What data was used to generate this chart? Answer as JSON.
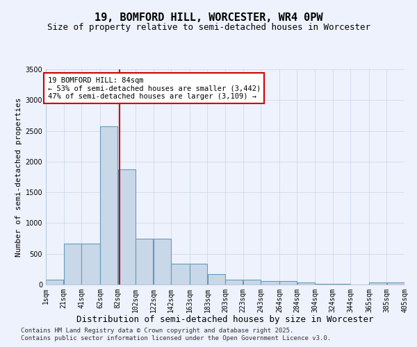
{
  "title": "19, BOMFORD HILL, WORCESTER, WR4 0PW",
  "subtitle": "Size of property relative to semi-detached houses in Worcester",
  "xlabel": "Distribution of semi-detached houses by size in Worcester",
  "ylabel": "Number of semi-detached properties",
  "footnote1": "Contains HM Land Registry data © Crown copyright and database right 2025.",
  "footnote2": "Contains public sector information licensed under the Open Government Licence v3.0.",
  "annotation_title": "19 BOMFORD HILL: 84sqm",
  "annotation_line1": "← 53% of semi-detached houses are smaller (3,442)",
  "annotation_line2": "47% of semi-detached houses are larger (3,109) →",
  "property_size": 84,
  "bar_left_edges": [
    1,
    21,
    41,
    62,
    82,
    102,
    122,
    142,
    163,
    183,
    203,
    223,
    243,
    264,
    284,
    304,
    324,
    344,
    365,
    385
  ],
  "bar_widths": [
    20,
    20,
    21,
    20,
    20,
    20,
    20,
    21,
    20,
    20,
    20,
    20,
    21,
    20,
    20,
    20,
    20,
    21,
    20,
    20
  ],
  "bar_heights": [
    75,
    670,
    670,
    2570,
    1870,
    750,
    750,
    340,
    340,
    170,
    80,
    80,
    55,
    55,
    30,
    10,
    10,
    0,
    30,
    30
  ],
  "bar_color": "#c8d8e8",
  "bar_edge_color": "#6699bb",
  "redline_color": "#cc0000",
  "annotation_box_color": "#cc0000",
  "background_color": "#eef2fc",
  "ylim": [
    0,
    3500
  ],
  "yticks": [
    0,
    500,
    1000,
    1500,
    2000,
    2500,
    3000,
    3500
  ],
  "xtick_labels": [
    "1sqm",
    "21sqm",
    "41sqm",
    "62sqm",
    "82sqm",
    "102sqm",
    "122sqm",
    "142sqm",
    "163sqm",
    "183sqm",
    "203sqm",
    "223sqm",
    "243sqm",
    "264sqm",
    "284sqm",
    "304sqm",
    "324sqm",
    "344sqm",
    "365sqm",
    "385sqm",
    "405sqm"
  ],
  "grid_color": "#c8d4e8",
  "title_fontsize": 11,
  "subtitle_fontsize": 9,
  "xlabel_fontsize": 9,
  "ylabel_fontsize": 8,
  "tick_fontsize": 7,
  "annotation_fontsize": 7.5,
  "footnote_fontsize": 6.5
}
